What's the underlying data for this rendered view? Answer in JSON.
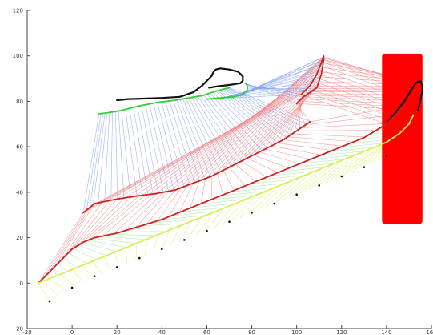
{
  "chart_data": {
    "type": "line",
    "title": "",
    "xlabel": "",
    "ylabel": "",
    "xlim": [
      -20,
      160
    ],
    "ylim": [
      -20,
      120
    ],
    "x_ticks": [
      -20,
      0,
      20,
      40,
      60,
      80,
      100,
      120,
      140,
      160
    ],
    "y_ticks": [
      -20,
      0,
      20,
      40,
      60,
      80,
      100,
      120
    ],
    "x_tick_labels": [
      "-20",
      "0",
      "20",
      "40",
      "60",
      "80",
      "100",
      "120",
      "140",
      "160"
    ],
    "y_tick_labels": [
      "-20",
      "0",
      "20",
      "40",
      "60",
      "80",
      "100",
      "120"
    ],
    "grid": false,
    "colors": {
      "black": "#111111",
      "red": "#cc2222",
      "green": "#33cc33",
      "blue_rays": "#7f9ff5",
      "red_rays": "#f08080",
      "green_rays": "#9be69b",
      "yellow": "#d8ee55",
      "obstacle": "#ff0000"
    },
    "obstacle": {
      "x_min": 138,
      "x_max": 156,
      "y_min": 26,
      "y_max": 101
    },
    "curves": [
      {
        "id": "black-top",
        "color": "black",
        "x": [
          20,
          25,
          32,
          40,
          48,
          54,
          58,
          60,
          62,
          63,
          64,
          66,
          70,
          74,
          76,
          76,
          75,
          72,
          68,
          64,
          61
        ],
        "y": [
          80.5,
          81,
          81.2,
          81.5,
          82,
          84,
          87,
          89,
          91,
          93,
          94,
          94.5,
          94,
          93,
          91,
          89,
          88,
          87.5,
          87,
          86.5,
          86
        ]
      },
      {
        "id": "green-arc",
        "color": "green",
        "x": [
          12,
          16,
          22,
          30,
          38,
          46,
          52,
          58,
          64,
          68,
          70
        ],
        "y": [
          74.5,
          75,
          76,
          78,
          79.5,
          80.5,
          81.5,
          82.5,
          84.5,
          85.5,
          86
        ]
      },
      {
        "id": "green-hook",
        "color": "green",
        "x": [
          60,
          66,
          72,
          76,
          78,
          78,
          77
        ],
        "y": [
          81,
          81.5,
          82,
          83,
          85,
          87,
          88
        ]
      },
      {
        "id": "red-top-loop",
        "color": "red",
        "x": [
          102,
          106,
          109,
          111,
          112,
          112,
          111,
          109,
          106,
          103,
          100
        ],
        "y": [
          83,
          87,
          92,
          97,
          100,
          98,
          92,
          86,
          84,
          82,
          79
        ]
      },
      {
        "id": "black-far-loop",
        "color": "black",
        "x": [
          140,
          144,
          148,
          151,
          153,
          155,
          156,
          156,
          155,
          154
        ],
        "y": [
          70,
          75,
          80,
          85,
          88,
          89,
          87,
          85,
          80,
          76
        ]
      },
      {
        "id": "red-base",
        "color": "red",
        "x": [
          5,
          10,
          20,
          30,
          38,
          46,
          54,
          62,
          70,
          78,
          86,
          94,
          100,
          106
        ],
        "y": [
          31,
          35,
          37,
          38.5,
          39.5,
          41,
          44,
          47,
          51,
          55,
          59,
          63,
          67,
          71
        ]
      },
      {
        "id": "red-lower",
        "color": "red",
        "x": [
          -15,
          -10,
          -5,
          0,
          5,
          10,
          20,
          30,
          40,
          50,
          60,
          70,
          80,
          90,
          100,
          110,
          120,
          130,
          140,
          148
        ],
        "y": [
          0,
          5,
          10,
          15,
          18,
          20,
          22,
          25,
          28,
          32,
          36,
          40,
          44,
          48,
          52,
          56,
          60,
          64,
          70,
          78
        ]
      },
      {
        "id": "yellow-lower",
        "color": "yellow",
        "x": [
          -15,
          -10,
          0,
          10,
          20,
          30,
          40,
          50,
          60,
          70,
          80,
          90,
          100,
          110,
          120,
          130,
          140,
          146,
          150,
          152
        ],
        "y": [
          0,
          2,
          6,
          10,
          14,
          18,
          22,
          26,
          30,
          34,
          38,
          42,
          46,
          50,
          54,
          58,
          62,
          66,
          70,
          74
        ]
      },
      {
        "id": "black-dotted",
        "color": "black",
        "x": [
          -10,
          0,
          10,
          20,
          30,
          40,
          50,
          60,
          70,
          80,
          90,
          100,
          110,
          120,
          130,
          140
        ],
        "y": [
          -8,
          -2,
          3,
          7,
          11,
          15,
          19,
          23,
          27,
          31,
          35,
          39,
          43,
          47,
          51,
          56
        ]
      }
    ]
  }
}
